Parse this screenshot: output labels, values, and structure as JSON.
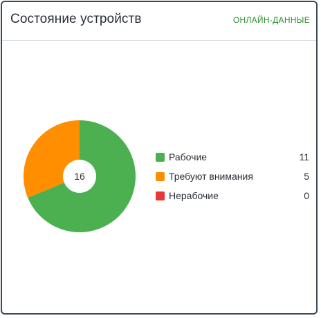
{
  "header": {
    "title": "Состояние устройств",
    "live_link": "ОНЛАЙН-ДАННЫЕ"
  },
  "colors": {
    "working": "#4caf50",
    "attention": "#ff8f00",
    "broken": "#e53935",
    "accent_link": "#2f8f2f"
  },
  "chart_data": {
    "type": "pie",
    "total_label": "16",
    "series": [
      {
        "name": "Рабочие",
        "value": 11,
        "color": "#4caf50"
      },
      {
        "name": "Требуют внимания",
        "value": 5,
        "color": "#ff8f00"
      },
      {
        "name": "Нерабочие",
        "value": 0,
        "color": "#e53935"
      }
    ]
  },
  "legend": {
    "items": [
      {
        "label": "Рабочие",
        "value": "11",
        "color": "#4caf50"
      },
      {
        "label": "Требуют внимания",
        "value": "5",
        "color": "#ff8f00"
      },
      {
        "label": "Нерабочие",
        "value": "0",
        "color": "#e53935"
      }
    ]
  }
}
